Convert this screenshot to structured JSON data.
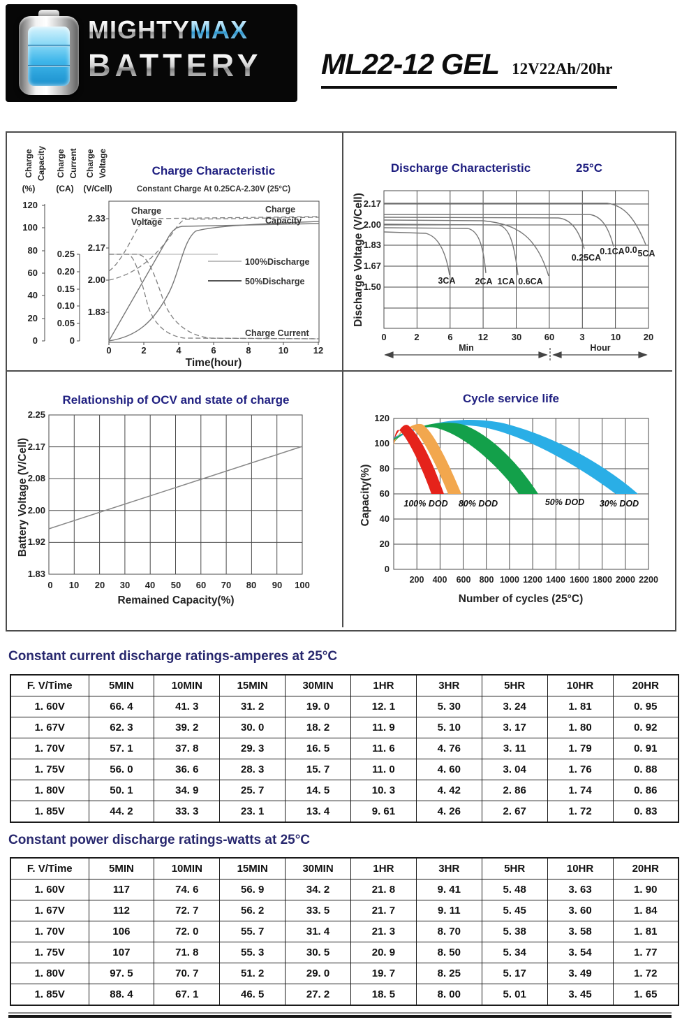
{
  "header": {
    "logo": {
      "word1": "MIGHTY",
      "word2": "MAX",
      "word3": "BATTERY"
    },
    "model": "ML22-12 GEL",
    "rating": "12V22Ah/20hr"
  },
  "chart_data": [
    {
      "id": "charge-characteristic",
      "type": "line",
      "title": "Charge Characteristic",
      "subtitle": "Constant Charge At 0.25CA-2.30V (25°C)",
      "x_label": "Time(hour)",
      "x_ticks": [
        "0",
        "2",
        "4",
        "6",
        "8",
        "10",
        "12"
      ],
      "xlim": [
        0,
        12
      ],
      "axes": [
        {
          "words": [
            "Charge",
            "Capacity"
          ],
          "unit": "(%)",
          "ticks": [
            "120",
            "100",
            "80",
            "60",
            "40",
            "20",
            "0"
          ]
        },
        {
          "words": [
            "Charge",
            "Current"
          ],
          "unit": "(CA)",
          "ticks": [
            "0.25",
            "0.20",
            "0.15",
            "0.10",
            "0.05",
            "0"
          ]
        },
        {
          "words": [
            "Charge",
            "Voltage"
          ],
          "unit": "(V/Cell)",
          "ticks": [
            "2.33",
            "2.17",
            "2.00",
            "1.83"
          ]
        }
      ],
      "labels": {
        "charge_voltage": [
          "Charge",
          "Voltage"
        ],
        "charge_capacity": [
          "Charge",
          "Capacity"
        ],
        "charge_current": "Charge Current"
      },
      "legend": [
        "100%Discharge",
        "50%Discharge"
      ],
      "series": [
        {
          "name": "Charge Voltage 100% discharge",
          "x_hours": [
            0,
            1,
            2,
            3,
            4,
            12
          ],
          "v_per_cell": [
            2.0,
            2.06,
            2.17,
            2.28,
            2.33,
            2.33
          ]
        },
        {
          "name": "Charge Voltage 50% discharge",
          "x_hours": [
            0,
            0.5,
            1,
            1.5,
            2,
            12
          ],
          "v_per_cell": [
            2.05,
            2.12,
            2.22,
            2.3,
            2.33,
            2.33
          ]
        },
        {
          "name": "Charge Capacity 100% discharge",
          "x_hours": [
            0,
            1,
            2,
            3,
            4,
            5,
            12
          ],
          "capacity_pct": [
            0,
            8,
            25,
            55,
            88,
            100,
            107
          ]
        },
        {
          "name": "Charge Capacity 50% discharge",
          "x_hours": [
            0,
            1,
            2,
            3,
            3.7,
            12
          ],
          "capacity_pct": [
            0,
            27,
            55,
            83,
            100,
            105
          ]
        },
        {
          "name": "Charge Current 100% discharge",
          "x_hours": [
            0,
            1.5,
            2.5,
            4,
            6,
            12
          ],
          "current_ca": [
            0.25,
            0.25,
            0.13,
            0.04,
            0.01,
            0.01
          ]
        },
        {
          "name": "Charge Current 50% discharge",
          "x_hours": [
            0,
            1,
            2,
            3,
            5,
            12
          ],
          "current_ca": [
            0.25,
            0.25,
            0.1,
            0.03,
            0.01,
            0.01
          ]
        }
      ]
    },
    {
      "id": "discharge-characteristic",
      "type": "line",
      "title": "Discharge Characteristic",
      "temperature": "25°C",
      "y_label": "Discharge Voltage (V/Cell)",
      "y_ticks": [
        "2.17",
        "2.00",
        "1.83",
        "1.67",
        "1.50"
      ],
      "x_ticks": [
        "0",
        "2",
        "6",
        "12",
        "30",
        "60",
        "3",
        "10",
        "20"
      ],
      "x_axis_segments": [
        "Min",
        "Hour"
      ],
      "curve_labels": [
        "3CA",
        "2CA",
        "1CA",
        "0.6CA",
        "0.25CA",
        "0.1CA",
        "0.0",
        "5CA"
      ],
      "series": [
        {
          "rate": "3CA",
          "approx_plateau_v": 1.93,
          "approx_runtime_min": 6.5
        },
        {
          "rate": "2CA",
          "approx_plateau_v": 1.97,
          "approx_runtime_min": 13
        },
        {
          "rate": "1CA",
          "approx_plateau_v": 2.0,
          "approx_runtime_min": 24
        },
        {
          "rate": "0.6CA",
          "approx_plateau_v": 2.03,
          "approx_runtime_min": 52
        },
        {
          "rate": "0.25CA",
          "approx_plateau_v": 2.06,
          "approx_runtime_min": 200
        },
        {
          "rate": "0.1CA",
          "approx_plateau_v": 2.08,
          "approx_runtime_min": 560
        },
        {
          "rate": "0.05CA",
          "approx_plateau_v": 2.16,
          "approx_runtime_min": 1200
        }
      ]
    },
    {
      "id": "ocv-state-of-charge",
      "type": "line",
      "title": "Relationship of OCV and state of charge",
      "y_label": "Battery Voltage (V/Cell)",
      "x_label": "Remained Capacity(%)",
      "y_ticks": [
        "2.25",
        "2.17",
        "2.08",
        "2.00",
        "1.92",
        "1.83"
      ],
      "x_ticks": [
        "0",
        "10",
        "20",
        "30",
        "40",
        "50",
        "60",
        "70",
        "80",
        "90",
        "100"
      ],
      "line": {
        "x_pct": [
          0,
          100
        ],
        "v_per_cell": [
          1.96,
          2.17
        ]
      }
    },
    {
      "id": "cycle-service-life",
      "type": "area",
      "title": "Cycle service life",
      "y_label": "Capacity(%)",
      "x_label": "Number of cycles (25°C)",
      "y_ticks": [
        "120",
        "100",
        "80",
        "60",
        "40",
        "20",
        "0"
      ],
      "x_ticks": [
        "200",
        "400",
        "600",
        "800",
        "1000",
        "1200",
        "1400",
        "1600",
        "1800",
        "2000",
        "2200"
      ],
      "bands": [
        {
          "label": "100% DOD",
          "color": "#e5231b",
          "approx_peak_pct": 116,
          "approx_cycles_at_60pct": [
            310,
            450
          ]
        },
        {
          "label": "80% DOD",
          "color": "#f2a74e",
          "approx_peak_pct": 115,
          "approx_cycles_at_60pct": [
            470,
            590
          ]
        },
        {
          "label": "50% DOD",
          "color": "#13a04a",
          "approx_peak_pct": 115,
          "approx_cycles_at_60pct": [
            1080,
            1250
          ]
        },
        {
          "label": "30% DOD",
          "color": "#2aaee6",
          "approx_peak_pct": 115,
          "approx_cycles_at_60pct": [
            1920,
            2110
          ]
        }
      ]
    }
  ],
  "tables": {
    "current": {
      "title": "Constant current discharge ratings-amperes at 25°C",
      "headers": [
        "F. V/Time",
        "5MIN",
        "10MIN",
        "15MIN",
        "30MIN",
        "1HR",
        "3HR",
        "5HR",
        "10HR",
        "20HR"
      ],
      "rows": [
        [
          "1. 60V",
          "66. 4",
          "41. 3",
          "31. 2",
          "19. 0",
          "12. 1",
          "5. 30",
          "3. 24",
          "1. 81",
          "0. 95"
        ],
        [
          "1. 67V",
          "62. 3",
          "39. 2",
          "30. 0",
          "18. 2",
          "11. 9",
          "5. 10",
          "3. 17",
          "1. 80",
          "0. 92"
        ],
        [
          "1. 70V",
          "57. 1",
          "37. 8",
          "29. 3",
          "16. 5",
          "11. 6",
          "4. 76",
          "3. 11",
          "1. 79",
          "0. 91"
        ],
        [
          "1. 75V",
          "56. 0",
          "36. 6",
          "28. 3",
          "15. 7",
          "11. 0",
          "4. 60",
          "3. 04",
          "1. 76",
          "0. 88"
        ],
        [
          "1. 80V",
          "50. 1",
          "34. 9",
          "25. 7",
          "14. 5",
          "10. 3",
          "4. 42",
          "2. 86",
          "1. 74",
          "0. 86"
        ],
        [
          "1. 85V",
          "44. 2",
          "33. 3",
          "23. 1",
          "13. 4",
          "9. 61",
          "4. 26",
          "2. 67",
          "1. 72",
          "0. 83"
        ]
      ]
    },
    "power": {
      "title": "Constant power discharge ratings-watts at 25°C",
      "headers": [
        "F. V/Time",
        "5MIN",
        "10MIN",
        "15MIN",
        "30MIN",
        "1HR",
        "3HR",
        "5HR",
        "10HR",
        "20HR"
      ],
      "rows": [
        [
          "1. 60V",
          "117",
          "74. 6",
          "56. 9",
          "34. 2",
          "21. 8",
          "9. 41",
          "5. 48",
          "3. 63",
          "1. 90"
        ],
        [
          "1. 67V",
          "112",
          "72. 7",
          "56. 2",
          "33. 5",
          "21. 7",
          "9. 11",
          "5. 45",
          "3. 60",
          "1. 84"
        ],
        [
          "1. 70V",
          "106",
          "72. 0",
          "55. 7",
          "31. 4",
          "21. 3",
          "8. 70",
          "5. 38",
          "3. 58",
          "1. 81"
        ],
        [
          "1. 75V",
          "107",
          "71. 8",
          "55. 3",
          "30. 5",
          "20. 9",
          "8. 50",
          "5. 34",
          "3. 54",
          "1. 77"
        ],
        [
          "1. 80V",
          "97. 5",
          "70. 7",
          "51. 2",
          "29. 0",
          "19. 7",
          "8. 25",
          "5. 17",
          "3. 49",
          "1. 72"
        ],
        [
          "1. 85V",
          "88. 4",
          "67. 1",
          "46. 5",
          "27. 2",
          "18. 5",
          "8. 00",
          "5. 01",
          "3. 45",
          "1. 65"
        ]
      ]
    }
  }
}
